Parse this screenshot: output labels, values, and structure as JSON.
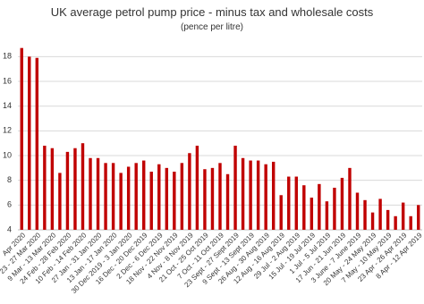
{
  "chart_data": {
    "type": "bar",
    "title": "UK average petrol pump price - minus tax and wholesale costs",
    "subtitle": "(pence per litre)",
    "categories": [
      "Apr 2020",
      null,
      "23 - 27 Mar 2020",
      null,
      "9 Mar - 13 Mar 2020",
      null,
      "24 Feb - 28 Feb 2020",
      null,
      "10 Feb - 14 Feb 2020",
      null,
      "27 Jan - 31 Jan 2020",
      null,
      "13 Jan - 17 Jan 2020",
      null,
      "30 Dec 2019 - 3 Jan 2020",
      null,
      "16 Dec - 20 Dec 2019",
      null,
      "2 Dec - 6 Dec 2019",
      null,
      "18 Nov - 22 Nov 2019",
      null,
      "4 Nov - 8 Nov 2019",
      null,
      "21 Oct - 25 Oct 2019",
      null,
      "7 Oct - 11 Oct 2019",
      null,
      "23 Sept - 27 Sept 2019",
      null,
      "9 Sept - 13 Sept 2019",
      null,
      "26 Aug - 30 Aug 2019",
      null,
      "12 Aug - 16 Aug 2019",
      null,
      "29 Jul - 2 Aug 2019",
      null,
      "15 Jul - 19 Jul 2019",
      null,
      "1 Jul - 5 Jul 2019",
      null,
      "17 Jun - 21 Jun 2019",
      null,
      "3 June - 7 June 2019",
      null,
      "20 May - 24 May 2019",
      null,
      "7 May - 10 May 2019",
      null,
      "23 Apr - 26 Apr 2019",
      null,
      "8 Apr - 12 Apr 2019"
    ],
    "values": [
      18.7,
      18,
      17.9,
      10.8,
      10.6,
      8.6,
      10.3,
      10.6,
      11,
      9.8,
      9.8,
      9.4,
      9.4,
      8.6,
      9.1,
      9.4,
      9.6,
      8.7,
      9.3,
      9.0,
      8.7,
      9.4,
      10.2,
      10.8,
      8.9,
      9.0,
      9.4,
      8.5,
      10.8,
      9.8,
      9.6,
      9.6,
      9.3,
      9.5,
      6.8,
      8.3,
      8.3,
      7.6,
      6.6,
      7.7,
      6.3,
      7.4,
      8.2,
      9.0,
      7.0,
      6.4,
      5.4,
      6.5,
      5.6,
      5.1,
      6.2,
      5.1,
      6.0
    ],
    "color": "#c00000",
    "ylim": [
      4,
      19.4
    ],
    "yticks": [
      4,
      6,
      8,
      10,
      12,
      14,
      16,
      18
    ],
    "grid": true
  }
}
